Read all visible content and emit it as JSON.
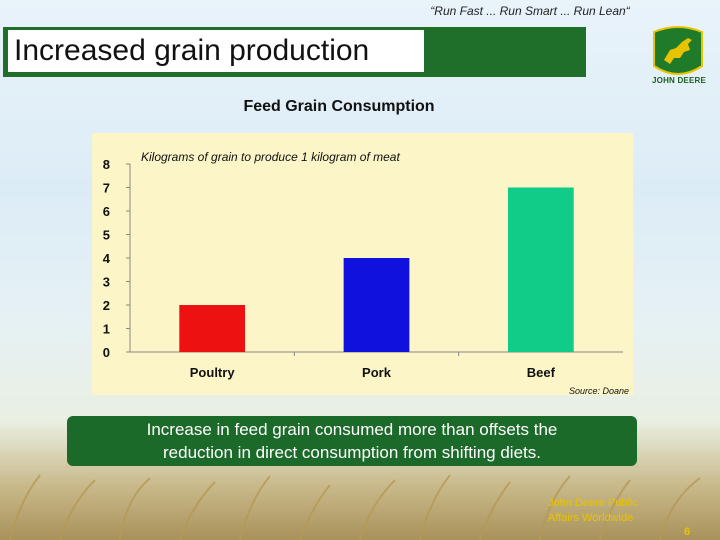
{
  "slide": {
    "slogan": "“Run Fast ... Run Smart ... Run Lean“",
    "title": "Increased grain production",
    "brand_text": "JOHN DEERE",
    "caption_line1": "Increase in feed grain consumed more than offsets the",
    "caption_line2": "reduction in direct consumption from shifting diets.",
    "footer_line1": "John Deere Public",
    "footer_line2": "Affairs Worldwide",
    "page_number": "6",
    "colors": {
      "title_bar": "#1f6e2a",
      "chart_bg": "#fbf5c7",
      "footer_text": "#e8c400"
    }
  },
  "chart_data": {
    "type": "bar",
    "title": "Feed Grain Consumption",
    "subtitle": "Kilograms of grain to produce 1 kilogram of meat",
    "source": "Source: Doane",
    "categories": [
      "Poultry",
      "Pork",
      "Beef"
    ],
    "values": [
      2,
      4,
      7
    ],
    "colors": [
      "#ee1111",
      "#1111dd",
      "#11cc88"
    ],
    "ylim": [
      0,
      8
    ],
    "yticks": [
      0,
      1,
      2,
      3,
      4,
      5,
      6,
      7,
      8
    ],
    "grid": false,
    "legend": "none"
  }
}
